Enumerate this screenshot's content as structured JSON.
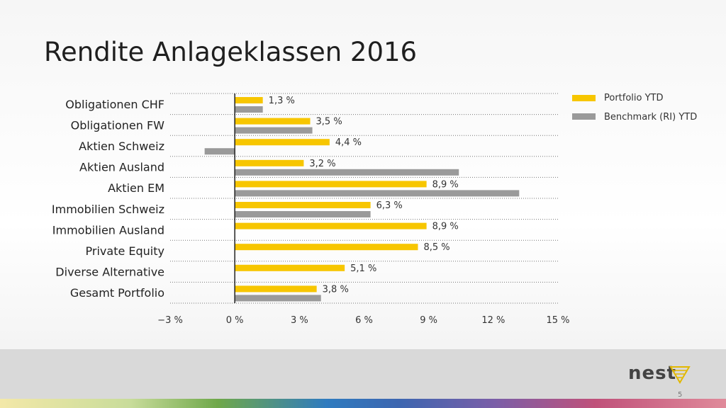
{
  "slide": {
    "title": "Rendite Anlageklassen 2016",
    "page_number": "5",
    "logo_text": "nest"
  },
  "colors": {
    "portfolio": "#f7c600",
    "benchmark": "#9a9a9a",
    "axis": "#222222",
    "grid": "#777777"
  },
  "chart_data": {
    "type": "bar",
    "orientation": "horizontal",
    "categories": [
      "Obligationen CHF",
      "Obligationen FW",
      "Aktien Schweiz",
      "Aktien Ausland",
      "Aktien EM",
      "Immobilien Schweiz",
      "Immobilien Ausland",
      "Private Equity",
      "Diverse Alternative",
      "Gesamt Portfolio"
    ],
    "series": [
      {
        "name": "Portfolio YTD",
        "values": [
          1.3,
          3.5,
          4.4,
          3.2,
          8.9,
          6.3,
          8.9,
          8.5,
          5.1,
          3.8
        ]
      },
      {
        "name": "Benchmark (RI) YTD",
        "values": [
          1.3,
          3.6,
          -1.4,
          10.4,
          13.2,
          6.3,
          null,
          null,
          null,
          4.0
        ]
      }
    ],
    "data_labels": [
      "1,3 %",
      "3,5 %",
      "4,4 %",
      "3,2 %",
      "8,9 %",
      "6,3 %",
      "8,9 %",
      "8,5 %",
      "5,1 %",
      "3,8 %"
    ],
    "xlim": [
      -3,
      15
    ],
    "xticks": [
      -3,
      0,
      3,
      6,
      9,
      12,
      15
    ],
    "xtick_labels": [
      "−3 %",
      "0 %",
      "3 %",
      "6 %",
      "9 %",
      "12 %",
      "15 %"
    ],
    "grid": true,
    "legend": "top-right"
  }
}
